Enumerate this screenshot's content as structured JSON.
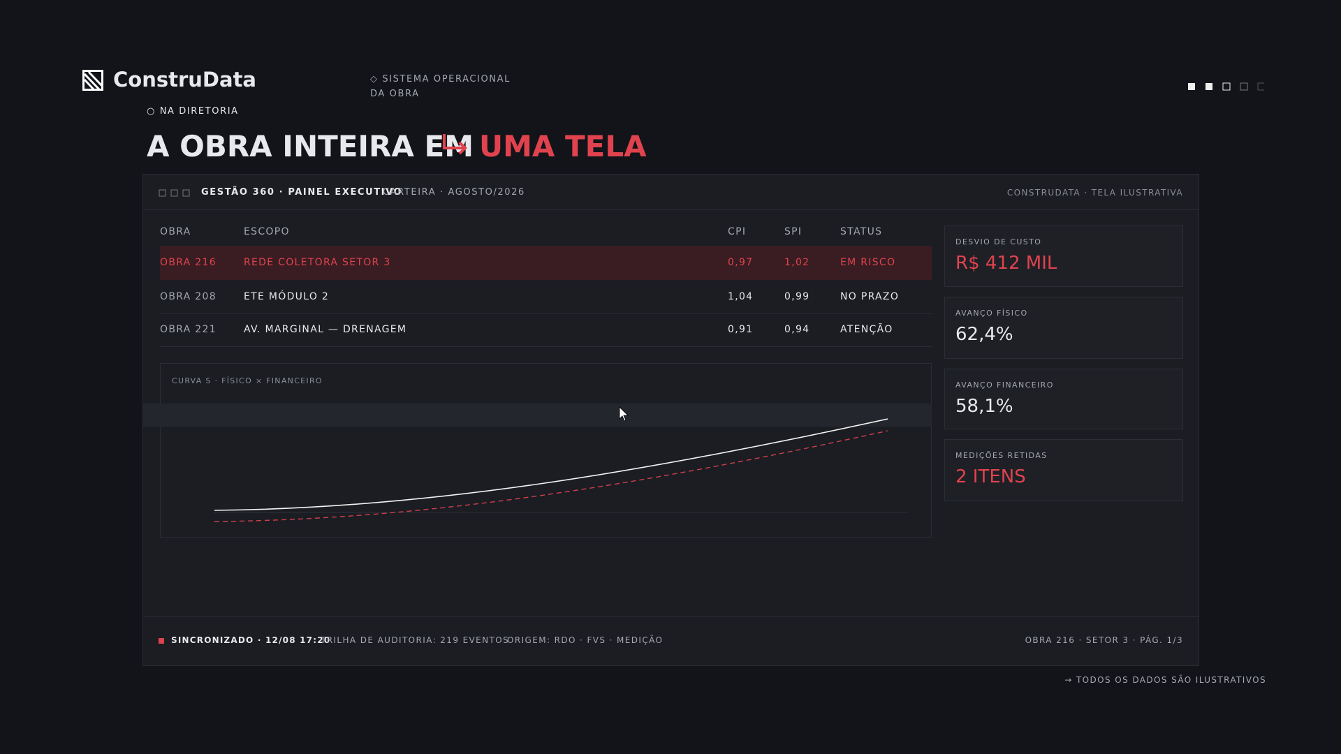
{
  "header": {
    "brand": "ConstruData",
    "tag": "NA DIRETORIA",
    "subtitle_lines": [
      "SISTEMA OPERACIONAL",
      "DA OBRA"
    ],
    "headline": "A OBRA INTEIRA EM",
    "headline_accent": "UMA TELA"
  },
  "window": {
    "title": "GESTÃO 360 · PAINEL EXECUTIVO",
    "context": "CARTEIRA · AGOSTO/2026",
    "right": "CONSTRUDATA · TELA ILUSTRATIVA"
  },
  "table": {
    "columns": [
      "OBRA",
      "ESCOPO",
      "CPI",
      "SPI",
      "STATUS"
    ],
    "rows": [
      [
        "OBRA 216",
        "REDE COLETORA SETOR 3",
        "0,97",
        "1,02",
        "EM RISCO"
      ],
      [
        "OBRA 208",
        "ETE MÓDULO 2",
        "1,04",
        "0,99",
        "NO PRAZO"
      ],
      [
        "OBRA 221",
        "AV. MARGINAL — DRENAGEM",
        "0,91",
        "0,94",
        "ATENÇÃO"
      ]
    ]
  },
  "curve": {
    "title": "CURVA S · FÍSICO × FINANCEIRO"
  },
  "kpis": [
    {
      "label": "DESVIO DE CUSTO",
      "value": "R$ 412 MIL"
    },
    {
      "label": "AVANÇO FÍSICO",
      "value": "62,4%"
    },
    {
      "label": "AVANÇO FINANCEIRO",
      "value": "58,1%"
    },
    {
      "label": "MEDIÇÕES RETIDAS",
      "value": "2 ITENS"
    }
  ],
  "footer": {
    "sync": "SINCRONIZADO · 12/08 17:20",
    "audit": "TRILHA DE AUDITORIA: 219 EVENTOS",
    "origin": "ORIGEM: RDO · FVS · MEDIÇÃO",
    "page": "OBRA 216 · SETOR 3 · PÁG. 1/3"
  },
  "note": "→ TODOS OS DADOS SÃO ILUSTRATIVOS"
}
